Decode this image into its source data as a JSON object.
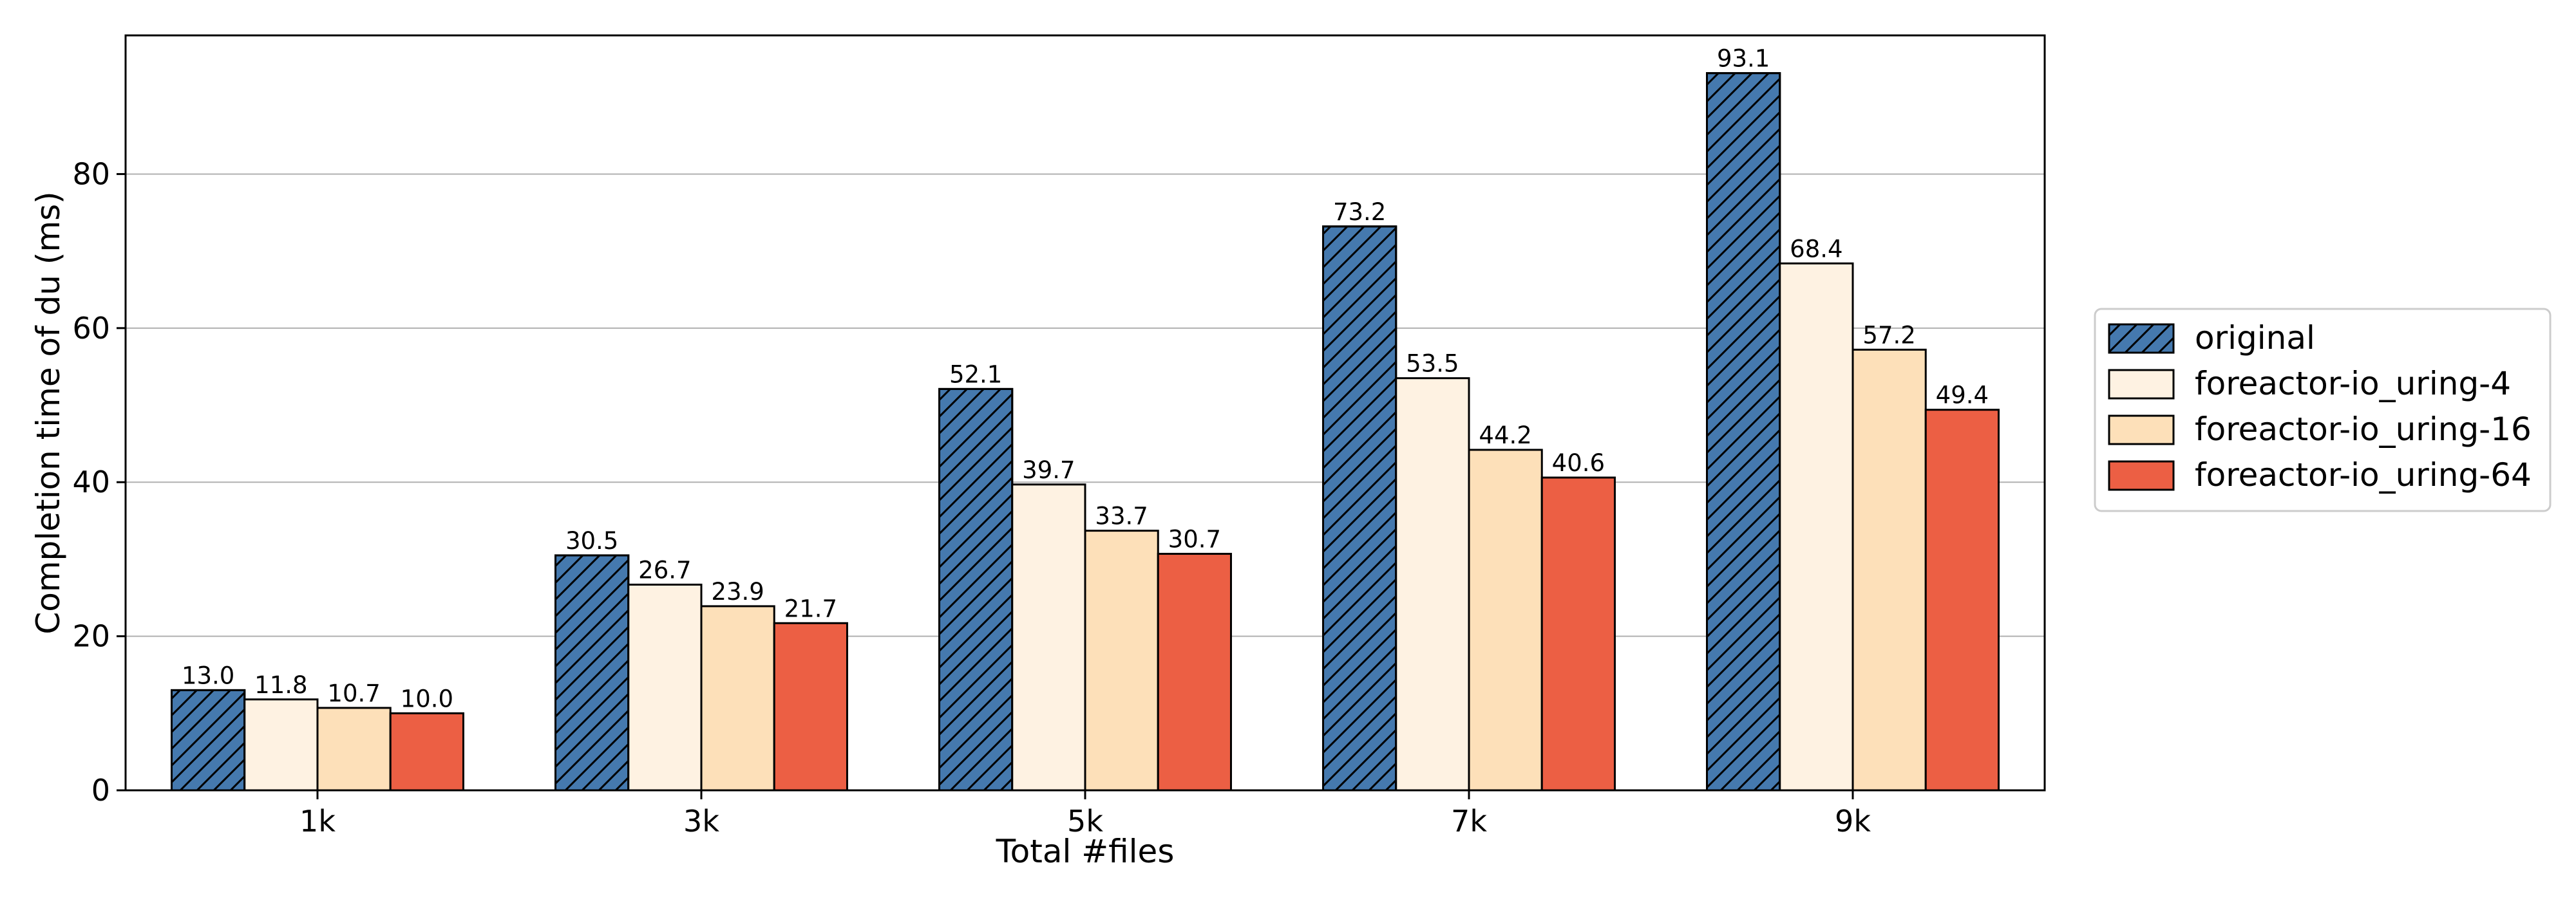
{
  "chart_data": {
    "type": "bar",
    "categories": [
      "1k",
      "3k",
      "5k",
      "7k",
      "9k"
    ],
    "series": [
      {
        "name": "original",
        "values": [
          13.0,
          30.5,
          52.1,
          73.2,
          93.1
        ],
        "color": "#4579AE",
        "hatch": true
      },
      {
        "name": "foreactor-io_uring-4",
        "values": [
          11.8,
          26.7,
          39.7,
          53.5,
          68.4
        ],
        "color": "#FEF2E2",
        "hatch": false
      },
      {
        "name": "foreactor-io_uring-16",
        "values": [
          10.7,
          23.9,
          33.7,
          44.2,
          57.2
        ],
        "color": "#FDE0B9",
        "hatch": false
      },
      {
        "name": "foreactor-io_uring-64",
        "values": [
          10.0,
          21.7,
          30.7,
          40.6,
          49.4
        ],
        "color": "#EC5F44",
        "hatch": false
      }
    ],
    "data_labels": [
      [
        "13.0",
        "30.5",
        "52.1",
        "73.2",
        "93.1"
      ],
      [
        "11.8",
        "26.7",
        "39.7",
        "53.5",
        "68.4"
      ],
      [
        "10.7",
        "23.9",
        "33.7",
        "44.2",
        "57.2"
      ],
      [
        "10.0",
        "21.7",
        "30.7",
        "40.6",
        "49.4"
      ]
    ],
    "title": "",
    "xlabel": "Total #files",
    "ylabel": "Completion time of du (ms)",
    "ylim": [
      0,
      98
    ],
    "yticks": [
      0,
      20,
      40,
      60,
      80
    ],
    "ytick_labels": [
      "0",
      "20",
      "40",
      "60",
      "80"
    ],
    "grid": "horizontal",
    "legend_placement": "right-outside"
  }
}
